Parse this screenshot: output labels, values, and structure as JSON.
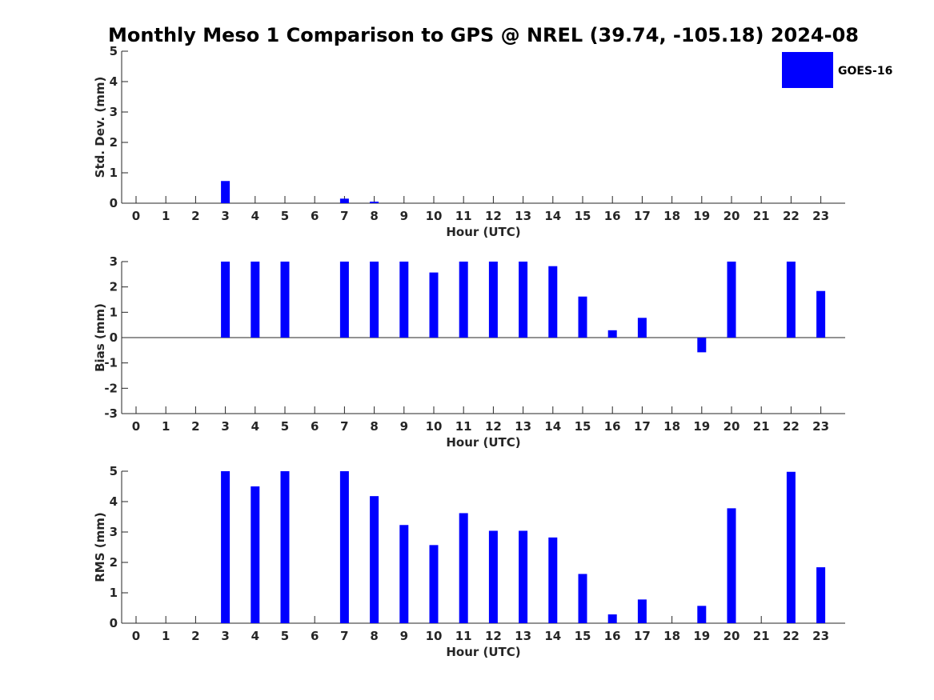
{
  "figure": {
    "title": "Monthly Meso 1 Comparison to GPS @ NREL (39.74, -105.18) 2024-08"
  },
  "legend": {
    "label": "GOES-16",
    "color": "#0000ff",
    "placement": "top-right"
  },
  "chart_data": [
    {
      "type": "bar",
      "title": "",
      "xlabel": "Hour (UTC)",
      "ylabel": "Std. Dev. (mm)",
      "ylim": [
        0,
        5
      ],
      "yticks": [
        "0",
        "1",
        "2",
        "3",
        "4",
        "5"
      ],
      "categories": [
        "0",
        "1",
        "2",
        "3",
        "4",
        "5",
        "6",
        "7",
        "8",
        "9",
        "10",
        "11",
        "12",
        "13",
        "14",
        "15",
        "16",
        "17",
        "18",
        "19",
        "20",
        "21",
        "22",
        "23"
      ],
      "series": [
        {
          "name": "GOES-16",
          "color": "#0000ff",
          "values": [
            0,
            0,
            0,
            0.73,
            0,
            0,
            0,
            0.15,
            0.05,
            0,
            0,
            0,
            0,
            0,
            0,
            0,
            0,
            0,
            0,
            0,
            0,
            0,
            0,
            0
          ]
        }
      ]
    },
    {
      "type": "bar",
      "title": "",
      "xlabel": "Hour (UTC)",
      "ylabel": "Bias (mm)",
      "ylim": [
        -3,
        3
      ],
      "yticks": [
        "-3",
        "-2",
        "-1",
        "0",
        "1",
        "2",
        "3"
      ],
      "categories": [
        "0",
        "1",
        "2",
        "3",
        "4",
        "5",
        "6",
        "7",
        "8",
        "9",
        "10",
        "11",
        "12",
        "13",
        "14",
        "15",
        "16",
        "17",
        "18",
        "19",
        "20",
        "21",
        "22",
        "23"
      ],
      "series": [
        {
          "name": "GOES-16",
          "color": "#0000ff",
          "values": [
            0,
            0,
            0,
            3,
            3,
            3,
            0,
            3,
            3,
            3,
            2.57,
            3,
            3,
            3,
            2.82,
            1.62,
            0.29,
            0.78,
            0,
            -0.58,
            3,
            0,
            3,
            1.84
          ]
        }
      ]
    },
    {
      "type": "bar",
      "title": "",
      "xlabel": "Hour (UTC)",
      "ylabel": "RMS (mm)",
      "ylim": [
        0,
        5
      ],
      "yticks": [
        "0",
        "1",
        "2",
        "3",
        "4",
        "5"
      ],
      "categories": [
        "0",
        "1",
        "2",
        "3",
        "4",
        "5",
        "6",
        "7",
        "8",
        "9",
        "10",
        "11",
        "12",
        "13",
        "14",
        "15",
        "16",
        "17",
        "18",
        "19",
        "20",
        "21",
        "22",
        "23"
      ],
      "series": [
        {
          "name": "GOES-16",
          "color": "#0000ff",
          "values": [
            0,
            0,
            0,
            5,
            4.5,
            5,
            0,
            5,
            4.18,
            3.23,
            2.57,
            3.62,
            3.04,
            3.04,
            2.82,
            1.62,
            0.29,
            0.78,
            0,
            0.57,
            3.78,
            0,
            4.98,
            1.84
          ]
        }
      ]
    }
  ]
}
